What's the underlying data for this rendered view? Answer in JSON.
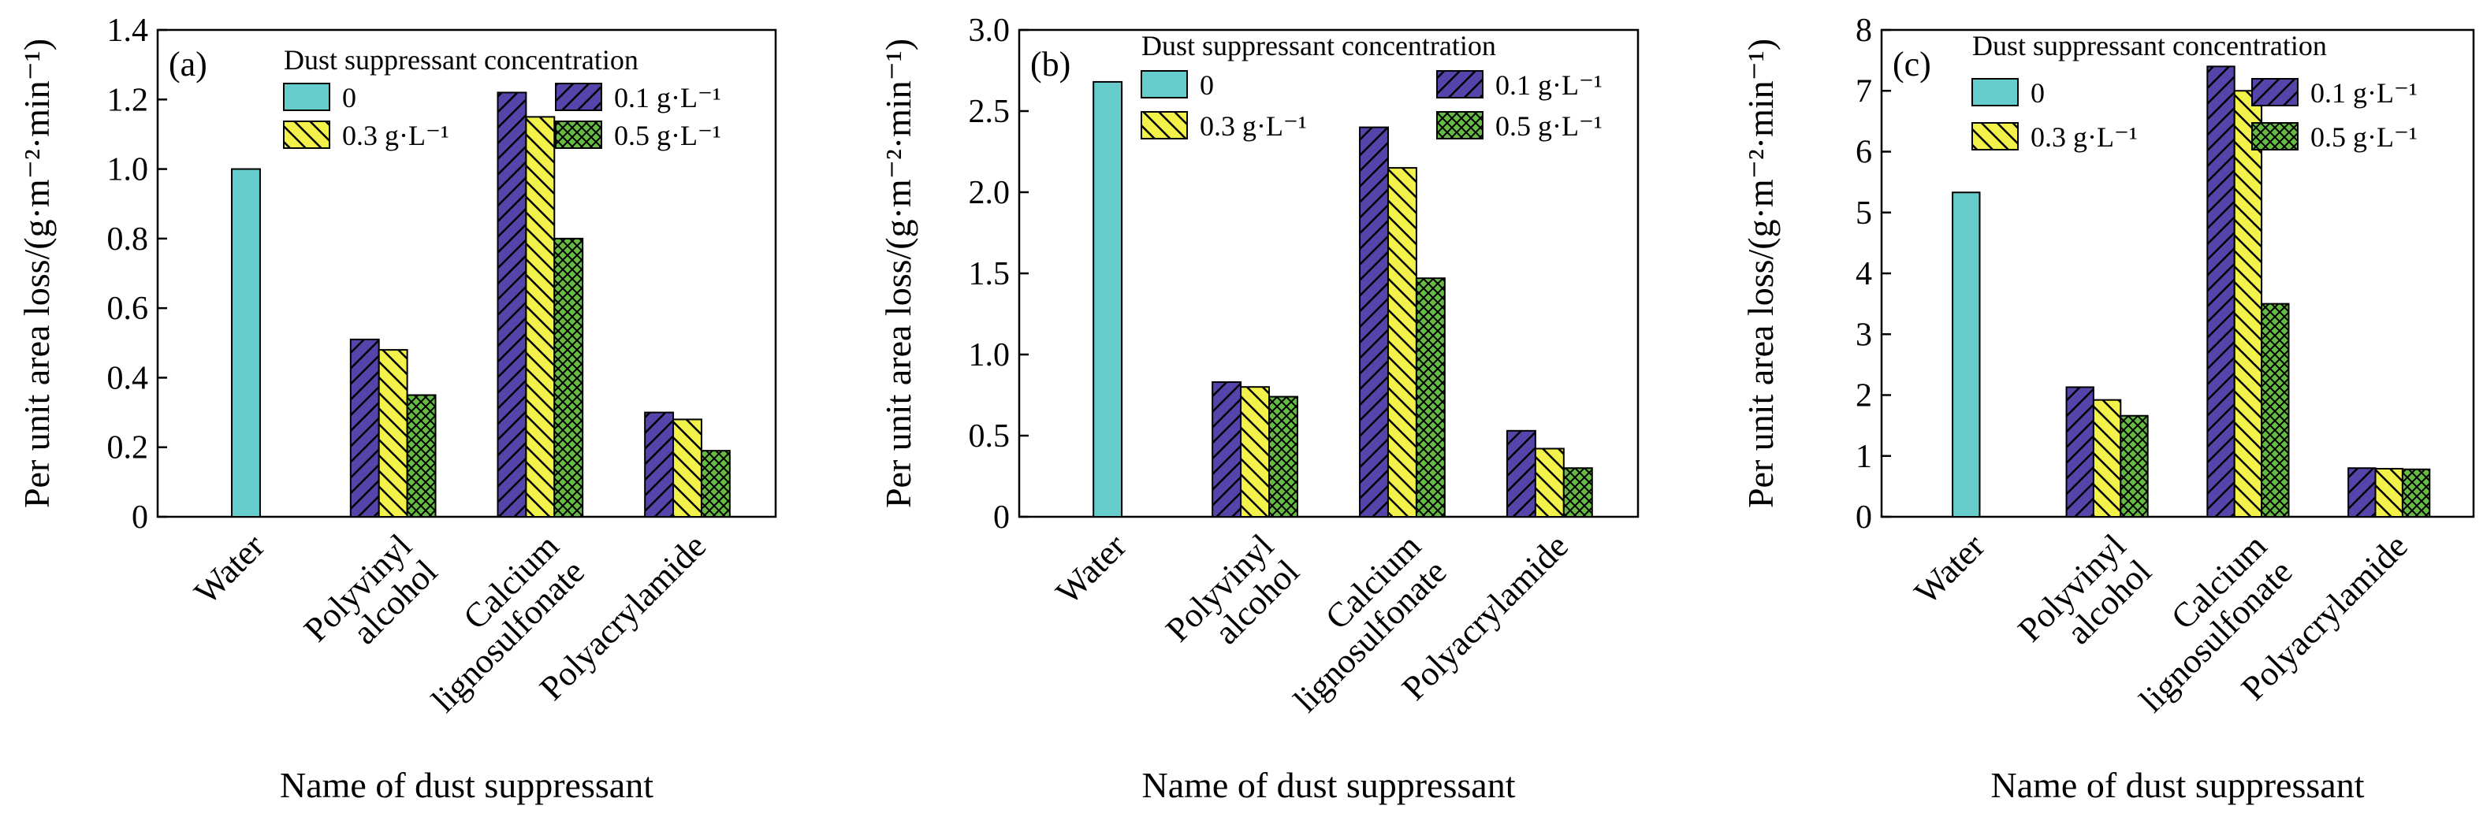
{
  "legend": {
    "title": "Dust suppressant concentration",
    "entries": [
      {
        "key": "c0",
        "label": "0"
      },
      {
        "key": "c01",
        "label": "0.1 g·L⁻¹"
      },
      {
        "key": "c03",
        "label": "0.3 g·L⁻¹"
      },
      {
        "key": "c05",
        "label": "0.5 g·L⁻¹"
      }
    ]
  },
  "colors": {
    "c0": "#66cccc",
    "c01": "#5544aa",
    "c03": "#f2f24a",
    "c05": "#66bb44",
    "stroke": "#000000"
  },
  "chart_data": [
    {
      "type": "bar",
      "panel_label": "(a)",
      "xlabel": "Name of dust suppressant",
      "ylabel": "Per unit area loss/(g·m⁻²·min⁻¹)",
      "ylim": [
        0,
        1.4
      ],
      "yticks": [
        "0",
        "0.2",
        "0.4",
        "0.6",
        "0.8",
        "1.0",
        "1.2",
        "1.4"
      ],
      "categories": [
        [
          "Water"
        ],
        [
          "Polyvinyl",
          "alcohol"
        ],
        [
          "Calcium",
          "lignosulfonate"
        ],
        [
          "Polyacrylamide"
        ]
      ],
      "series": [
        {
          "name": "0",
          "values": [
            1.0,
            null,
            null,
            null
          ]
        },
        {
          "name": "0.1 g·L⁻¹",
          "values": [
            null,
            0.51,
            1.22,
            0.3
          ]
        },
        {
          "name": "0.3 g·L⁻¹",
          "values": [
            null,
            0.48,
            1.15,
            0.28
          ]
        },
        {
          "name": "0.5 g·L⁻¹",
          "values": [
            null,
            0.35,
            0.8,
            0.19
          ]
        }
      ]
    },
    {
      "type": "bar",
      "panel_label": "(b)",
      "xlabel": "Name of dust suppressant",
      "ylabel": "Per unit area loss/(g·m⁻²·min⁻¹)",
      "ylim": [
        0,
        3.0
      ],
      "yticks": [
        "0",
        "0.5",
        "1.0",
        "1.5",
        "2.0",
        "2.5",
        "3.0"
      ],
      "categories": [
        [
          "Water"
        ],
        [
          "Polyvinyl",
          "alcohol"
        ],
        [
          "Calcium",
          "lignosulfonate"
        ],
        [
          "Polyacrylamide"
        ]
      ],
      "series": [
        {
          "name": "0",
          "values": [
            2.68,
            null,
            null,
            null
          ]
        },
        {
          "name": "0.1 g·L⁻¹",
          "values": [
            null,
            0.83,
            2.4,
            0.53
          ]
        },
        {
          "name": "0.3 g·L⁻¹",
          "values": [
            null,
            0.8,
            2.15,
            0.42
          ]
        },
        {
          "name": "0.5 g·L⁻¹",
          "values": [
            null,
            0.74,
            1.47,
            0.3
          ]
        }
      ]
    },
    {
      "type": "bar",
      "panel_label": "(c)",
      "xlabel": "Name of dust suppressant",
      "ylabel": "Per unit area loss/(g·m⁻²·min⁻¹)",
      "ylim": [
        0,
        8
      ],
      "yticks": [
        "0",
        "1",
        "2",
        "3",
        "4",
        "5",
        "6",
        "7",
        "8"
      ],
      "categories": [
        [
          "Water"
        ],
        [
          "Polyvinyl",
          "alcohol"
        ],
        [
          "Calcium",
          "lignosulfonate"
        ],
        [
          "Polyacrylamide"
        ]
      ],
      "series": [
        {
          "name": "0",
          "values": [
            5.33,
            null,
            null,
            null
          ]
        },
        {
          "name": "0.1 g·L⁻¹",
          "values": [
            null,
            2.13,
            7.4,
            0.8
          ]
        },
        {
          "name": "0.3 g·L⁻¹",
          "values": [
            null,
            1.92,
            7.0,
            0.79
          ]
        },
        {
          "name": "0.5 g·L⁻¹",
          "values": [
            null,
            1.66,
            3.5,
            0.78
          ]
        }
      ]
    }
  ]
}
